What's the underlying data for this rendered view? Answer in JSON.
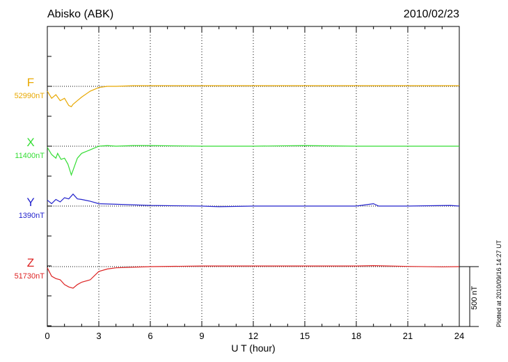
{
  "header": {
    "station": "Abisko (ABK)",
    "date": "2010/02/23",
    "plotted": "Plotted at 2010/09/16 14:27 UT"
  },
  "chart_data": {
    "type": "line",
    "xlabel": "U T (hour)",
    "xlim": [
      0,
      24
    ],
    "xticks": [
      "0",
      "3",
      "6",
      "9",
      "12",
      "15",
      "18",
      "21",
      "24"
    ],
    "grid": true,
    "scale_bar": {
      "label": "500 nT",
      "value_nT": 500
    },
    "series": [
      {
        "name": "F",
        "baseline_label": "52990nT",
        "baseline_nT": 52990,
        "color": "#e8a800",
        "x": [
          0,
          0.25,
          0.5,
          0.75,
          1.0,
          1.25,
          1.4,
          1.5,
          1.75,
          2.0,
          2.5,
          3.0,
          3.5,
          4.0,
          5.0,
          6.0,
          9.0,
          12.0,
          15.0,
          18.0,
          21.0,
          23.0,
          24.0
        ],
        "values": [
          52950,
          52890,
          52920,
          52870,
          52890,
          52830,
          52820,
          52840,
          52870,
          52900,
          52950,
          52980,
          52990,
          52990,
          52995,
          52995,
          52995,
          52995,
          52995,
          52995,
          52995,
          52995,
          52995
        ]
      },
      {
        "name": "X",
        "baseline_label": "11400nT",
        "baseline_nT": 11400,
        "color": "#33dd33",
        "x": [
          0,
          0.25,
          0.5,
          0.6,
          0.8,
          1.0,
          1.2,
          1.4,
          1.5,
          1.75,
          2.0,
          2.5,
          3.0,
          3.5,
          4.0,
          5.0,
          6.0,
          9.0,
          12.0,
          15.0,
          18.0,
          21.0,
          24.0
        ],
        "values": [
          11390,
          11330,
          11300,
          11340,
          11290,
          11300,
          11250,
          11160,
          11200,
          11300,
          11340,
          11370,
          11400,
          11405,
          11400,
          11405,
          11405,
          11400,
          11400,
          11405,
          11400,
          11400,
          11400
        ]
      },
      {
        "name": "Y",
        "baseline_label": "1390nT",
        "baseline_nT": 1390,
        "color": "#2222cc",
        "x": [
          0,
          0.25,
          0.5,
          0.75,
          1.0,
          1.25,
          1.5,
          1.75,
          2.0,
          2.5,
          3.0,
          4.0,
          6.0,
          9.0,
          10.0,
          12.0,
          15.0,
          18.0,
          19.0,
          19.3,
          21.0,
          23.5,
          24.0
        ],
        "values": [
          1440,
          1410,
          1445,
          1425,
          1460,
          1450,
          1490,
          1450,
          1445,
          1430,
          1410,
          1405,
          1395,
          1390,
          1385,
          1390,
          1390,
          1390,
          1410,
          1390,
          1390,
          1395,
          1390
        ]
      },
      {
        "name": "Z",
        "baseline_label": "51730nT",
        "baseline_nT": 51730,
        "color": "#dd2222",
        "x": [
          0,
          0.25,
          0.5,
          0.75,
          1.0,
          1.25,
          1.5,
          1.75,
          2.0,
          2.5,
          3.0,
          3.5,
          4.0,
          6.0,
          9.0,
          12.0,
          15.0,
          18.0,
          19.0,
          21.0,
          23.0,
          24.0
        ],
        "values": [
          51720,
          51650,
          51630,
          51620,
          51580,
          51560,
          51550,
          51580,
          51600,
          51620,
          51690,
          51710,
          51720,
          51730,
          51735,
          51735,
          51735,
          51735,
          51738,
          51732,
          51728,
          51730
        ]
      }
    ]
  }
}
